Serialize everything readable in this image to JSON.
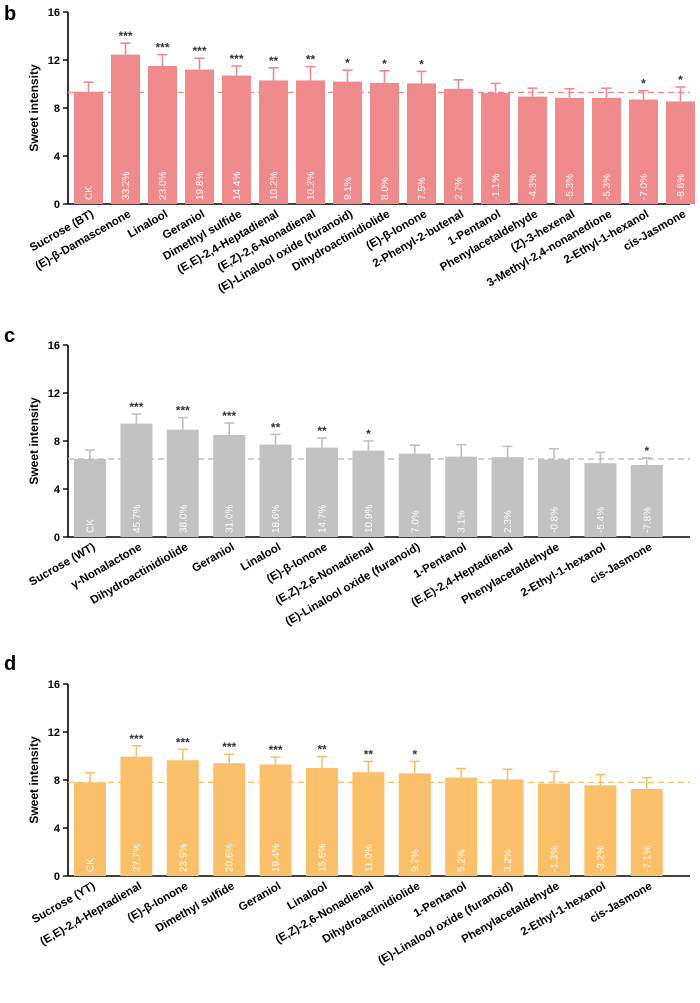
{
  "chart_data": [
    {
      "panel": "b",
      "type": "bar",
      "ylabel": "Sweet intensity",
      "ylim": [
        0,
        16
      ],
      "yticks": [
        0,
        4,
        8,
        12,
        16
      ],
      "color": "#f08b8d",
      "reference_line_value": 9.3,
      "categories": [
        "Sucrose (BT)",
        "(E)-β-Damascenone",
        "Linalool",
        "Geraniol",
        "Dimethyl sulfide",
        "(E,E)-2,4-Heptadienal",
        "(E,Z)-2,6-Nonadienal",
        "(E)-Linalool oxide (furanoid)",
        "Dihydroactinidiolide",
        "(E)-β-Ionone",
        "2-Phenyl-2-butenal",
        "1-Pentanol",
        "Phenylacetaldehyde",
        "(Z)-3-hexenal",
        "3-Methyl-2,4-nonanedione",
        "2-Ethyl-1-hexanol",
        "cis-Jasmone"
      ],
      "values": [
        9.35,
        12.45,
        11.5,
        11.2,
        10.7,
        10.3,
        10.3,
        10.2,
        10.1,
        10.05,
        9.6,
        9.25,
        8.95,
        8.85,
        8.85,
        8.7,
        8.55
      ],
      "errors": [
        0.8,
        0.95,
        0.95,
        0.95,
        0.8,
        1.05,
        1.15,
        0.95,
        1.0,
        1.0,
        0.75,
        0.8,
        0.7,
        0.75,
        0.8,
        0.75,
        1.2
      ],
      "bar_labels": [
        "CK",
        "33.2%",
        "23.0%",
        "19.8%",
        "14.4%",
        "10.2%",
        "10.2%",
        "9.1%",
        "8.0%",
        "7.5%",
        "2.7%",
        "-1.1%",
        "-4.3%",
        "-5.3%",
        "-5.3%",
        "-7.0%",
        "-8.6%"
      ],
      "significance": [
        "",
        "***",
        "***",
        "***",
        "***",
        "**",
        "**",
        "*",
        "*",
        "*",
        "",
        "",
        "",
        "",
        "",
        "*",
        "*"
      ]
    },
    {
      "panel": "c",
      "type": "bar",
      "ylabel": "Sweet intensity",
      "ylim": [
        0,
        16
      ],
      "yticks": [
        0,
        4,
        8,
        12,
        16
      ],
      "color": "#c2c2c2",
      "reference_line_value": 6.5,
      "categories": [
        "Sucrose (WT)",
        "γ-Nonalactone",
        "Dihydroactinidiolide",
        "Geraniol",
        "Linalool",
        "(E)-β-Ionone",
        "(E,Z)-2,6-Nonadienal",
        "(E)-Linalool oxide (furanoid)",
        "1-Pentanol",
        "(E,E)-2,4-Heptadienal",
        "Phenylacetaldehyde",
        "2-Ethyl-1-hexanol",
        "cis-Jasmone"
      ],
      "values": [
        6.5,
        9.45,
        8.95,
        8.5,
        7.7,
        7.45,
        7.2,
        6.95,
        6.7,
        6.65,
        6.45,
        6.15,
        6.0
      ],
      "errors": [
        0.75,
        0.8,
        1.0,
        1.0,
        0.85,
        0.8,
        0.8,
        0.7,
        1.0,
        0.9,
        0.9,
        0.9,
        0.6
      ],
      "bar_labels": [
        "CK",
        "45.7%",
        "38.0%",
        "31.0%",
        "18.6%",
        "14.7%",
        "10.9%",
        "7.0%",
        "3.1%",
        "2.3%",
        "-0.8%",
        "-5.4%",
        "-7.8%"
      ],
      "significance": [
        "",
        "***",
        "***",
        "***",
        "**",
        "**",
        "*",
        "",
        "",
        "",
        "",
        "",
        "*"
      ]
    },
    {
      "panel": "d",
      "type": "bar",
      "ylabel": "Sweet intensity",
      "ylim": [
        0,
        16
      ],
      "yticks": [
        0,
        4,
        8,
        12,
        16
      ],
      "color": "#fbc06a",
      "reference_line_value": 7.8,
      "categories": [
        "Sucrose (YT)",
        "(E,E)-2,4-Heptadienal",
        "(E)-β-Ionone",
        "Dimethyl sulfide",
        "Geraniol",
        "Linalool",
        "(E,Z)-2,6-Nonadienal",
        "Dihydroactinidiolide",
        "1-Pentanol",
        "(E)-Linalool oxide (furanoid)",
        "Phenylacetaldehyde",
        "2-Ethyl-1-hexanol",
        "cis-Jasmone"
      ],
      "values": [
        7.8,
        9.95,
        9.65,
        9.4,
        9.3,
        9.0,
        8.65,
        8.55,
        8.2,
        8.05,
        7.7,
        7.55,
        7.25
      ],
      "errors": [
        0.8,
        0.9,
        0.9,
        0.75,
        0.6,
        0.95,
        0.9,
        1.0,
        0.75,
        0.85,
        1.0,
        0.9,
        0.95
      ],
      "bar_labels": [
        "CK",
        "27.7%",
        "23.9%",
        "20.6%",
        "19.4%",
        "15.6%",
        "11.0%",
        "9.7%",
        "5.2%",
        "3.2%",
        "-1.3%",
        "-3.2%",
        "-7.1%"
      ],
      "significance": [
        "",
        "***",
        "***",
        "***",
        "***",
        "**",
        "**",
        "*",
        "",
        "",
        "",
        "",
        ""
      ]
    }
  ]
}
